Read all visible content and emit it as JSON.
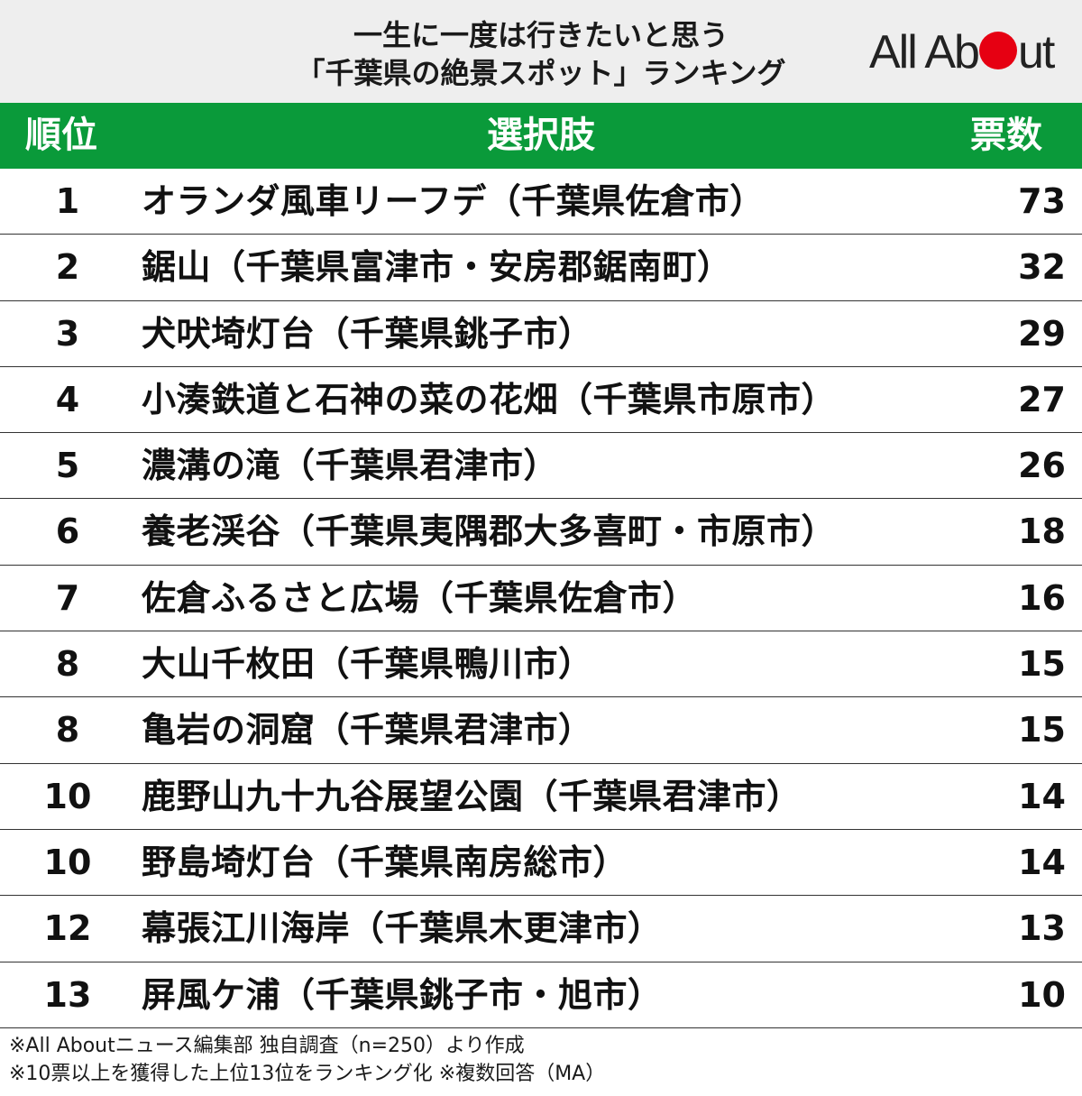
{
  "header": {
    "title_line1": "一生に一度は行きたいと思う",
    "title_line2": "「千葉県の絶景スポット」ランキング",
    "logo_part1": "All Ab",
    "logo_part2": "ut",
    "brand_color": "#e60012"
  },
  "table": {
    "header_color": "#0a9a3a",
    "columns": [
      "順位",
      "選択肢",
      "票数"
    ],
    "rows": [
      {
        "rank": "1",
        "choice": "オランダ風車リーフデ（千葉県佐倉市）",
        "votes": "73"
      },
      {
        "rank": "2",
        "choice": "鋸山（千葉県富津市・安房郡鋸南町）",
        "votes": "32"
      },
      {
        "rank": "3",
        "choice": "犬吠埼灯台（千葉県銚子市）",
        "votes": "29"
      },
      {
        "rank": "4",
        "choice": "小湊鉄道と石神の菜の花畑（千葉県市原市）",
        "votes": "27"
      },
      {
        "rank": "5",
        "choice": "濃溝の滝（千葉県君津市）",
        "votes": "26"
      },
      {
        "rank": "6",
        "choice": "養老渓谷（千葉県夷隅郡大多喜町・市原市）",
        "votes": "18"
      },
      {
        "rank": "7",
        "choice": "佐倉ふるさと広場（千葉県佐倉市）",
        "votes": "16"
      },
      {
        "rank": "8",
        "choice": "大山千枚田（千葉県鴨川市）",
        "votes": "15"
      },
      {
        "rank": "8",
        "choice": "亀岩の洞窟（千葉県君津市）",
        "votes": "15"
      },
      {
        "rank": "10",
        "choice": "鹿野山九十九谷展望公園（千葉県君津市）",
        "votes": "14"
      },
      {
        "rank": "10",
        "choice": "野島埼灯台（千葉県南房総市）",
        "votes": "14"
      },
      {
        "rank": "12",
        "choice": "幕張江川海岸（千葉県木更津市）",
        "votes": "13"
      },
      {
        "rank": "13",
        "choice": "屏風ケ浦（千葉県銚子市・旭市）",
        "votes": "10"
      }
    ]
  },
  "footer": {
    "note1": "※All Aboutニュース編集部 独自調査（n=250）より作成",
    "note2": "※10票以上を獲得した上位13位をランキング化 ※複数回答（MA）"
  }
}
